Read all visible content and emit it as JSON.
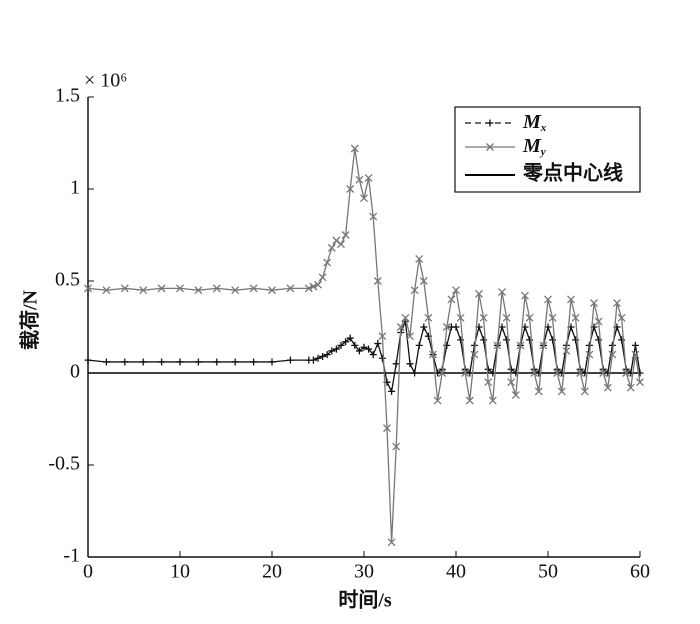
{
  "chart_data": {
    "type": "line",
    "xlabel": "时间/s",
    "ylabel": "载荷/N",
    "y_multiplier": "× 10⁶",
    "x": [
      0,
      2,
      4,
      6,
      8,
      10,
      12,
      14,
      16,
      18,
      20,
      22,
      24,
      24.5,
      25,
      25.5,
      26,
      26.5,
      27,
      27.5,
      28,
      28.5,
      29,
      29.5,
      30,
      30.5,
      31,
      31.5,
      32,
      32.5,
      33,
      33.5,
      34,
      34.5,
      35,
      35.5,
      36,
      36.5,
      37,
      37.5,
      38,
      38.5,
      39,
      39.5,
      40,
      40.5,
      41,
      41.5,
      42,
      42.5,
      43,
      43.5,
      44,
      44.5,
      45,
      45.5,
      46,
      46.5,
      47,
      47.5,
      48,
      48.5,
      49,
      49.5,
      50,
      50.5,
      51,
      51.5,
      52,
      52.5,
      53,
      53.5,
      54,
      54.5,
      55,
      55.5,
      56,
      56.5,
      57,
      57.5,
      58,
      58.5,
      59,
      59.5,
      60
    ],
    "series": [
      {
        "name": "Mx",
        "color": "#111111",
        "marker": "+",
        "values": [
          0.07,
          0.06,
          0.06,
          0.06,
          0.06,
          0.06,
          0.06,
          0.06,
          0.06,
          0.06,
          0.06,
          0.07,
          0.07,
          0.07,
          0.08,
          0.09,
          0.1,
          0.12,
          0.13,
          0.15,
          0.17,
          0.19,
          0.15,
          0.12,
          0.14,
          0.13,
          0.1,
          0.16,
          0.08,
          -0.05,
          -0.1,
          0.05,
          0.22,
          0.28,
          0.05,
          0.0,
          0.15,
          0.25,
          0.2,
          0.1,
          0.0,
          0.02,
          0.15,
          0.25,
          0.25,
          0.18,
          0.02,
          0.0,
          0.15,
          0.25,
          0.18,
          0.02,
          0.0,
          0.15,
          0.25,
          0.18,
          0.02,
          0.0,
          0.15,
          0.25,
          0.18,
          0.02,
          0.0,
          0.15,
          0.25,
          0.18,
          0.02,
          0.0,
          0.15,
          0.25,
          0.18,
          0.02,
          0.0,
          0.15,
          0.25,
          0.18,
          0.02,
          0.0,
          0.15,
          0.25,
          0.18,
          0.02,
          0.0,
          0.15,
          0.0
        ]
      },
      {
        "name": "My",
        "color": "#777777",
        "marker": "x",
        "values": [
          0.46,
          0.45,
          0.46,
          0.45,
          0.46,
          0.46,
          0.45,
          0.46,
          0.45,
          0.46,
          0.45,
          0.46,
          0.46,
          0.47,
          0.48,
          0.52,
          0.6,
          0.68,
          0.72,
          0.7,
          0.75,
          1.0,
          1.22,
          1.05,
          0.95,
          1.06,
          0.85,
          0.5,
          0.2,
          -0.3,
          -0.92,
          -0.4,
          0.25,
          0.3,
          0.2,
          0.45,
          0.62,
          0.5,
          0.3,
          0.1,
          -0.15,
          0.0,
          0.25,
          0.4,
          0.45,
          0.3,
          0.0,
          -0.15,
          0.1,
          0.43,
          0.3,
          -0.05,
          -0.15,
          0.15,
          0.44,
          0.3,
          -0.05,
          -0.12,
          0.15,
          0.42,
          0.3,
          0.0,
          -0.1,
          0.15,
          0.4,
          0.3,
          0.0,
          -0.1,
          0.12,
          0.4,
          0.3,
          0.0,
          -0.1,
          0.1,
          0.38,
          0.28,
          0.0,
          -0.08,
          0.1,
          0.38,
          0.3,
          0.0,
          -0.08,
          0.1,
          -0.05
        ]
      }
    ],
    "reference_line": {
      "name": "零点中心线",
      "value": 0,
      "color": "#000000"
    },
    "xlim": [
      0,
      60
    ],
    "xticks": [
      0,
      10,
      20,
      30,
      40,
      50,
      60
    ],
    "ylim": [
      -1,
      1.5
    ],
    "yticks": [
      -1,
      -0.5,
      0,
      0.5,
      1,
      1.5
    ],
    "grid": false,
    "legend": "upper right"
  }
}
